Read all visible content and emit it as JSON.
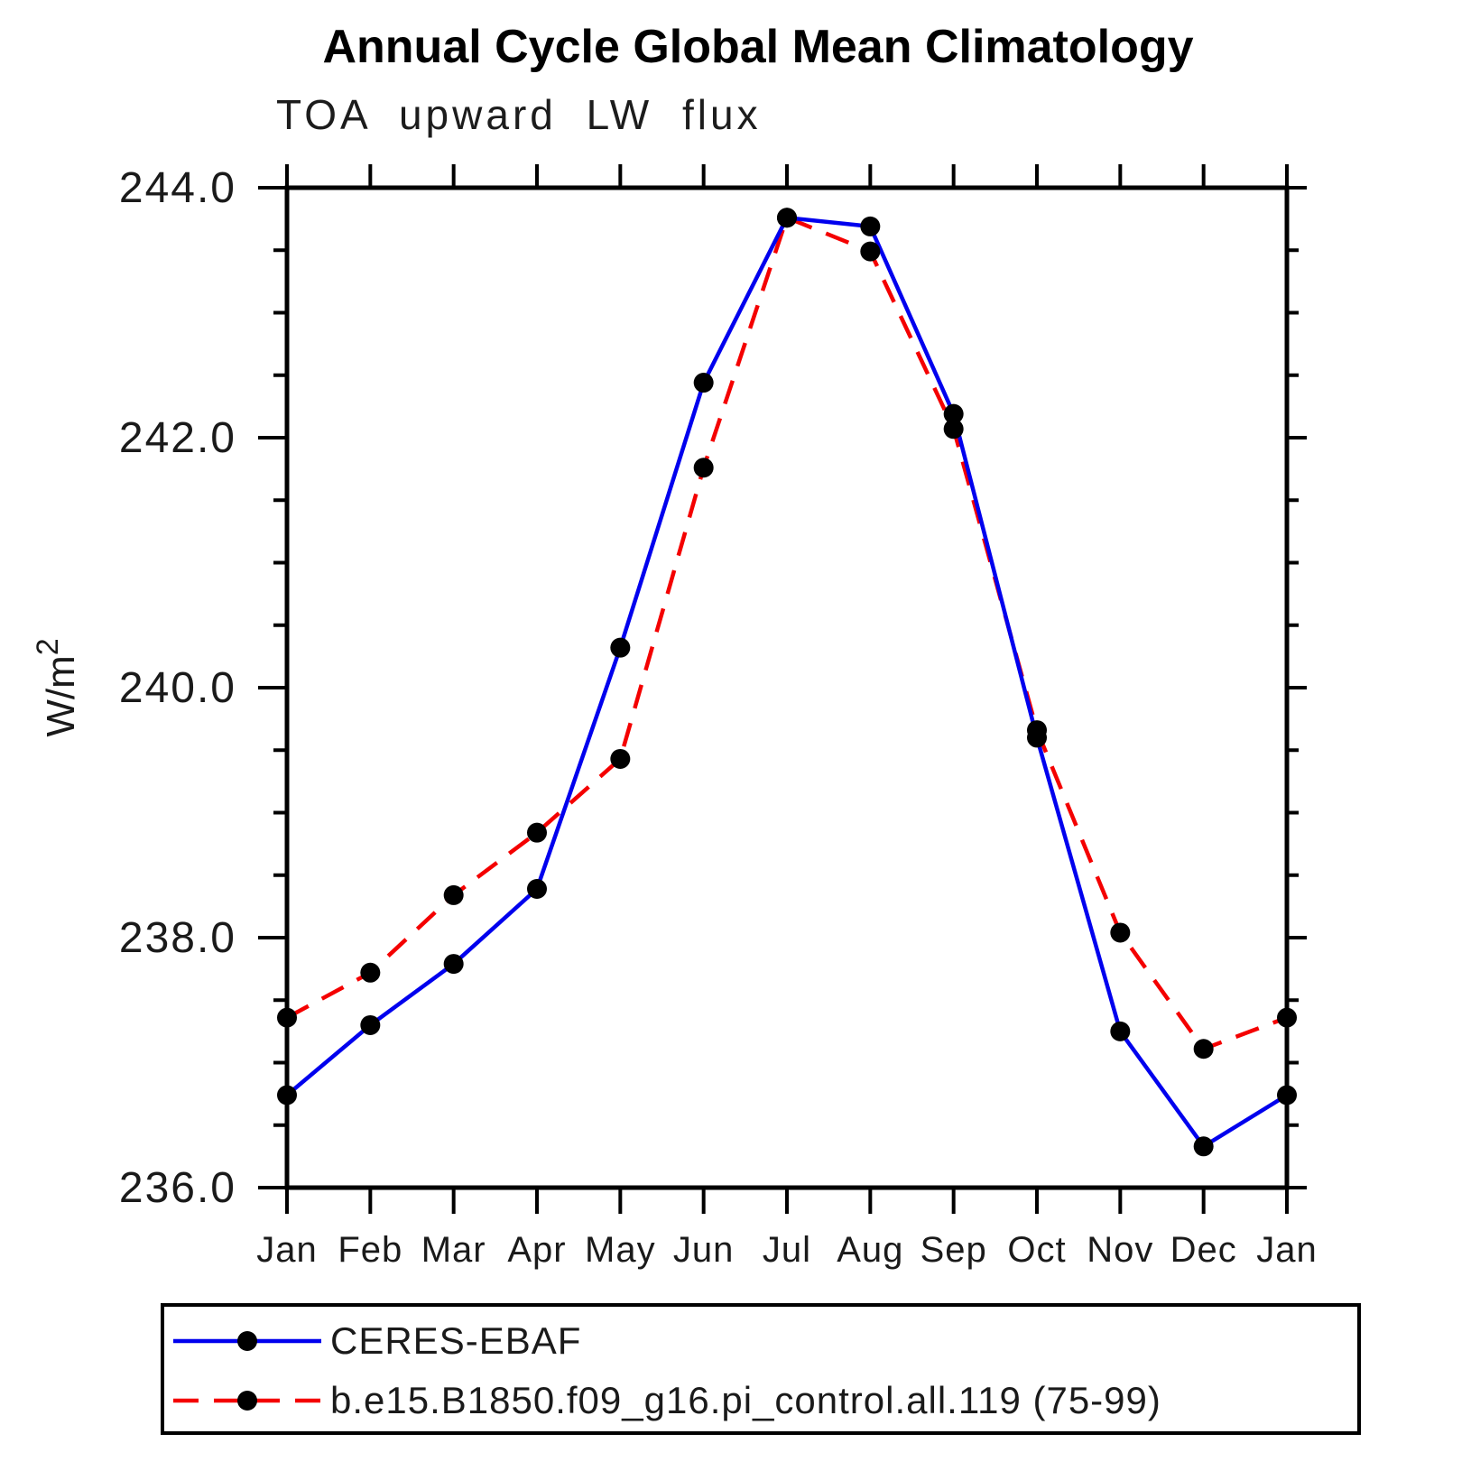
{
  "title": "Annual Cycle Global Mean Climatology",
  "subtitle": "TOA upward LW flux",
  "chart_data": {
    "type": "line",
    "x": [
      "Jan",
      "Feb",
      "Mar",
      "Apr",
      "May",
      "Jun",
      "Jul",
      "Aug",
      "Sep",
      "Oct",
      "Nov",
      "Dec",
      "Jan"
    ],
    "ylabel": "W/m²",
    "ylim": [
      236.0,
      244.0
    ],
    "ytick_step": 2.0,
    "yminor_step": 0.5,
    "ytick_labels": [
      "236.0",
      "238.0",
      "240.0",
      "242.0",
      "244.0"
    ],
    "grid": false,
    "legend_position": "bottom-left-box",
    "series": [
      {
        "name": "CERES-EBAF",
        "color": "#0000ee",
        "style": "solid",
        "marker": "circle",
        "marker_color": "#000000",
        "values": [
          236.74,
          237.3,
          237.79,
          238.39,
          240.32,
          242.44,
          243.76,
          243.69,
          242.19,
          239.6,
          237.25,
          236.33,
          236.74
        ]
      },
      {
        "name": "b.e15.B1850.f09_g16.pi_control.all.119 (75-99)",
        "color": "#f40000",
        "style": "dashed",
        "marker": "circle",
        "marker_color": "#000000",
        "values": [
          237.36,
          237.72,
          238.34,
          238.84,
          239.43,
          241.76,
          243.76,
          243.49,
          242.07,
          239.66,
          238.04,
          237.11,
          237.36
        ]
      }
    ],
    "axis_color": "#000000"
  }
}
